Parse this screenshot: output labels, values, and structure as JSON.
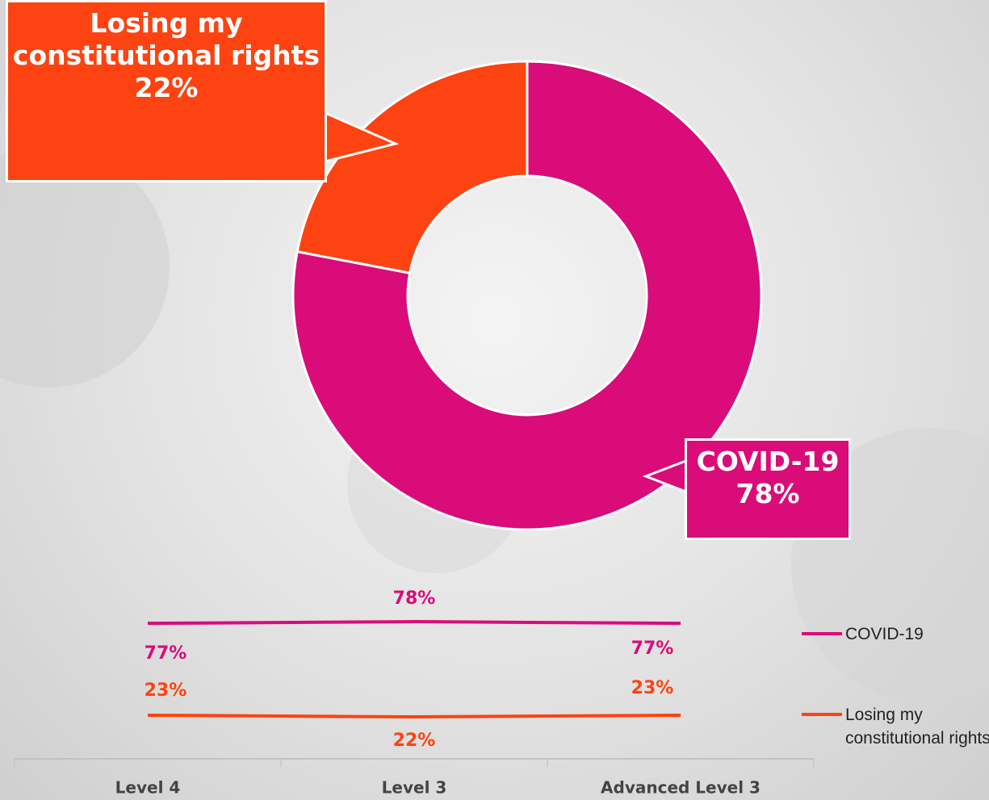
{
  "chart_data": [
    {
      "type": "donut",
      "categories": [
        "COVID-19",
        "Losing my constitutional rights"
      ],
      "values": [
        78,
        22
      ],
      "value_labels": [
        "78%",
        "22%"
      ],
      "colors": [
        "#d90c79",
        "#fc4311"
      ]
    },
    {
      "type": "line",
      "categories": [
        "Level 4",
        "Level 3",
        "Advanced Level 3"
      ],
      "series": [
        {
          "name": "COVID-19",
          "color": "#d90c79",
          "values": [
            77,
            78,
            77
          ],
          "value_labels": [
            "77%",
            "78%",
            "77%"
          ]
        },
        {
          "name": "Losing my constitutional rights",
          "color": "#fc4311",
          "values": [
            23,
            22,
            23
          ],
          "value_labels": [
            "23%",
            "22%",
            "23%"
          ]
        }
      ],
      "ylim": [
        0,
        100
      ],
      "legend": "right"
    }
  ]
}
